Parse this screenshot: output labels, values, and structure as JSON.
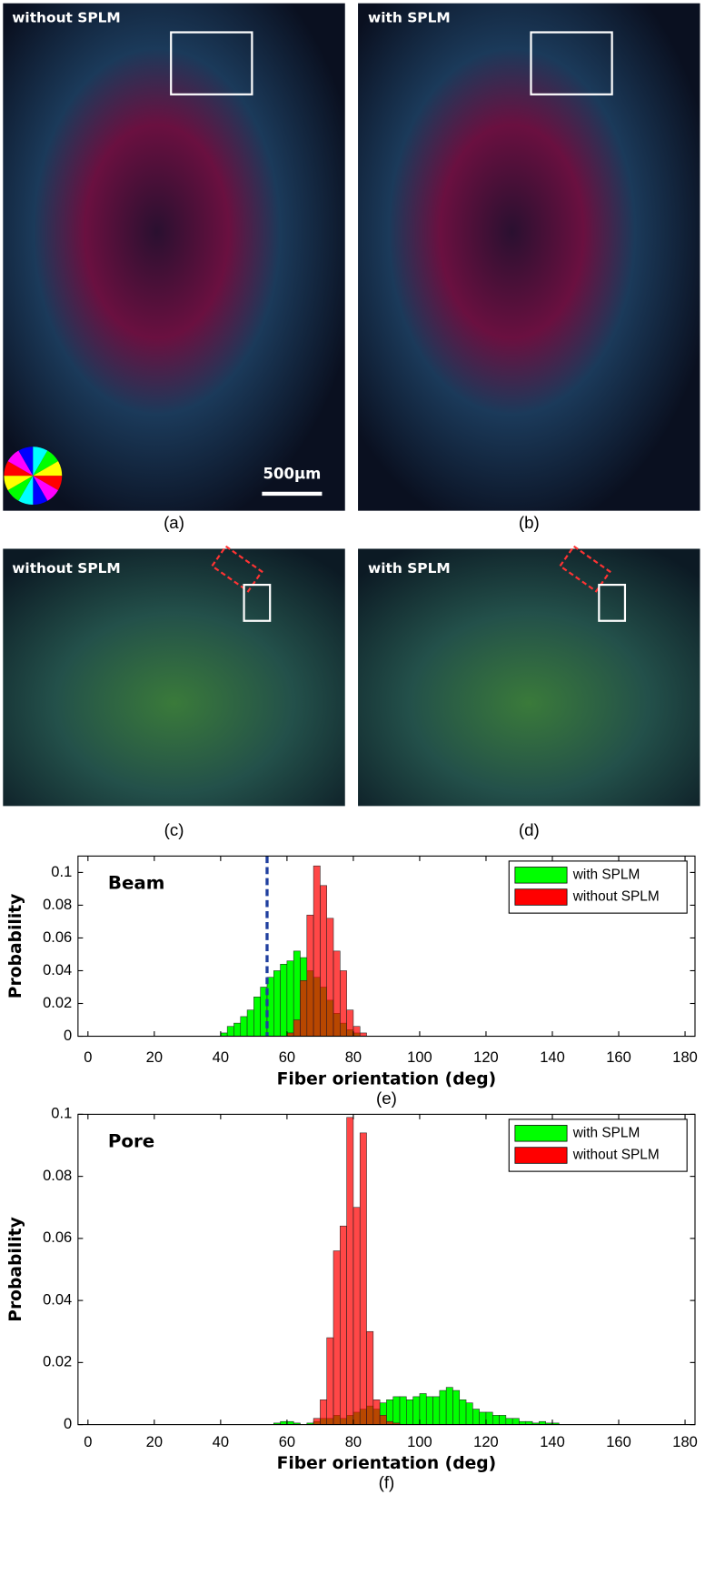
{
  "panels": [
    {
      "label": "without SPLM",
      "caption": "(a)",
      "scale_bar": "500μm"
    },
    {
      "label": "with SPLM",
      "caption": "(b)"
    },
    {
      "label": "without SPLM",
      "caption": "(c)"
    },
    {
      "label": "with SPLM",
      "caption": "(d)"
    }
  ],
  "chart_data": [
    {
      "type": "histogram",
      "annotation": "Beam",
      "caption": "(e)",
      "x_label": "Fiber orientation (deg)",
      "y_label": "Probability",
      "bins": [
        38,
        40,
        42,
        44,
        46,
        48,
        50,
        52,
        54,
        56,
        58,
        60,
        62,
        64,
        66,
        68,
        70,
        72,
        74,
        76,
        78,
        80,
        82,
        84
      ],
      "series": [
        {
          "name": "with SPLM",
          "color": "#00ff00",
          "values": [
            0,
            0.002,
            0.006,
            0.008,
            0.012,
            0.016,
            0.024,
            0.03,
            0.036,
            0.04,
            0.044,
            0.046,
            0.052,
            0.048,
            0.04,
            0.036,
            0.03,
            0.022,
            0.014,
            0.008,
            0.004,
            0.002,
            0
          ]
        },
        {
          "name": "without SPLM",
          "color": "#ff0000",
          "values": [
            0,
            0,
            0,
            0,
            0,
            0,
            0,
            0,
            0,
            0,
            0,
            0.002,
            0.01,
            0.034,
            0.074,
            0.104,
            0.092,
            0.072,
            0.052,
            0.04,
            0.016,
            0.006,
            0.002
          ]
        }
      ],
      "vline": 54,
      "vline_color": "#1f3f9f",
      "xlim": [
        -3,
        183
      ],
      "ylim": [
        0,
        0.11
      ],
      "xticks": [
        0,
        20,
        40,
        60,
        80,
        100,
        120,
        140,
        160,
        180
      ],
      "yticks": [
        0,
        0.02,
        0.04,
        0.06,
        0.08,
        0.1
      ],
      "legend": "upper right"
    },
    {
      "type": "histogram",
      "annotation": "Pore",
      "caption": "(f)",
      "x_label": "Fiber orientation (deg)",
      "y_label": "Probability",
      "bins": [
        54,
        56,
        58,
        60,
        62,
        64,
        66,
        68,
        70,
        72,
        74,
        76,
        78,
        80,
        82,
        84,
        86,
        88,
        90,
        92,
        94,
        96,
        98,
        100,
        102,
        104,
        106,
        108,
        110,
        112,
        114,
        116,
        118,
        120,
        122,
        124,
        126,
        128,
        130,
        132,
        134,
        136,
        138,
        140,
        142,
        144
      ],
      "series": [
        {
          "name": "with SPLM",
          "color": "#00ff00",
          "values": [
            0,
            0.0005,
            0.001,
            0.001,
            0.0005,
            0,
            0.0005,
            0.001,
            0.002,
            0.002,
            0.003,
            0.002,
            0.003,
            0.004,
            0.005,
            0.006,
            0.005,
            0.007,
            0.008,
            0.009,
            0.009,
            0.008,
            0.009,
            0.01,
            0.009,
            0.009,
            0.011,
            0.012,
            0.011,
            0.008,
            0.007,
            0.005,
            0.004,
            0.004,
            0.003,
            0.003,
            0.002,
            0.002,
            0.001,
            0.001,
            0.0005,
            0.001,
            0.0005,
            0.0005,
            0
          ]
        },
        {
          "name": "without SPLM",
          "color": "#ff0000",
          "values": [
            0,
            0,
            0,
            0,
            0,
            0,
            0,
            0.002,
            0.008,
            0.028,
            0.056,
            0.064,
            0.099,
            0.07,
            0.094,
            0.03,
            0.008,
            0.003,
            0.001,
            0.0005,
            0,
            0,
            0,
            0,
            0,
            0,
            0,
            0,
            0,
            0,
            0,
            0,
            0,
            0,
            0,
            0,
            0,
            0,
            0,
            0,
            0,
            0,
            0,
            0,
            0
          ]
        }
      ],
      "xlim": [
        -3,
        183
      ],
      "ylim": [
        0,
        0.1
      ],
      "xticks": [
        0,
        20,
        40,
        60,
        80,
        100,
        120,
        140,
        160,
        180
      ],
      "yticks": [
        0,
        0.02,
        0.04,
        0.06,
        0.08,
        0.1
      ],
      "legend": "upper right"
    }
  ]
}
